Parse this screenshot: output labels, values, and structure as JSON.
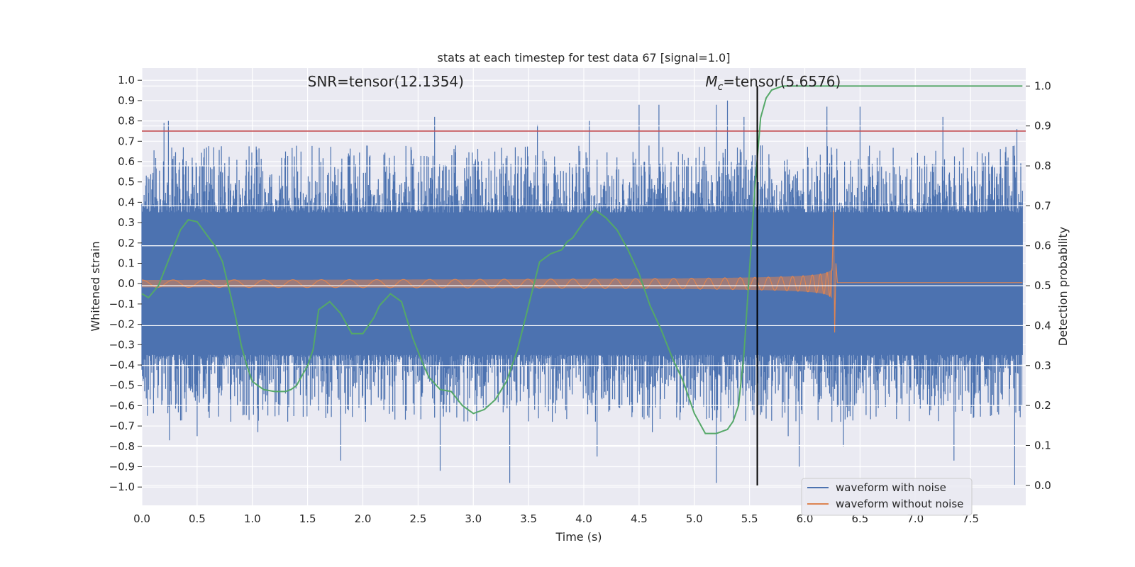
{
  "chart_data": {
    "type": "line",
    "title": "stats at each timestep for test data 67 [signal=1.0]",
    "xlabel": "Time (s)",
    "ylabel": "Whitened strain",
    "ylabel_right": "Detection probability",
    "xlim": [
      0.0,
      8.0
    ],
    "ylim": [
      -1.09,
      1.06
    ],
    "ylim_right": [
      -0.05,
      1.045
    ],
    "x_ticks": [
      "0.0",
      "0.5",
      "1.0",
      "1.5",
      "2.0",
      "2.5",
      "3.0",
      "3.5",
      "4.0",
      "4.5",
      "5.0",
      "5.5",
      "6.0",
      "6.5",
      "7.0",
      "7.5"
    ],
    "y_ticks": [
      "1.0",
      "0.9",
      "0.8",
      "0.7",
      "0.6",
      "0.5",
      "0.4",
      "0.3",
      "0.2",
      "0.1",
      "0.0",
      "−0.1",
      "−0.2",
      "−0.3",
      "−0.4",
      "−0.5",
      "−0.6",
      "−0.7",
      "−0.8",
      "−0.9",
      "−1.0"
    ],
    "y_ticks_right": [
      "1.0",
      "0.9",
      "0.8",
      "0.7",
      "0.6",
      "0.5",
      "0.4",
      "0.3",
      "0.2",
      "0.1",
      "0.0"
    ],
    "grid": true,
    "legend_position": "bottom-right",
    "threshold": {
      "y": 0.75,
      "color": "#c44e52"
    },
    "marker_line": {
      "x": 5.57,
      "color": "#000000"
    },
    "annotations": [
      {
        "text": "SNR=tensor(12.1354)",
        "x": 1.5,
        "y": 0.97
      },
      {
        "text_prefix": "M",
        "text_sub": "c",
        "text_suffix": "=tensor(5.6576)",
        "x": 5.1,
        "y": 0.97
      }
    ],
    "series": [
      {
        "name": "waveform with noise",
        "color": "#4c72b0",
        "kind": "noise",
        "band": 0.35,
        "x_end": 7.97,
        "spikes_up": [
          [
            0.2,
            0.79
          ],
          [
            0.24,
            0.8
          ],
          [
            0.65,
            0.67
          ],
          [
            1.3,
            0.65
          ],
          [
            2.65,
            0.82
          ],
          [
            3.58,
            0.78
          ],
          [
            4.05,
            0.8
          ],
          [
            4.5,
            0.88
          ],
          [
            4.68,
            0.88
          ],
          [
            5.2,
            0.88
          ],
          [
            5.3,
            0.9
          ],
          [
            5.45,
            0.82
          ],
          [
            6.2,
            0.87
          ],
          [
            6.5,
            0.87
          ],
          [
            7.25,
            0.82
          ],
          [
            7.92,
            0.76
          ]
        ],
        "spikes_down": [
          [
            0.05,
            -0.65
          ],
          [
            0.25,
            -0.77
          ],
          [
            0.5,
            -0.75
          ],
          [
            1.05,
            -0.73
          ],
          [
            1.8,
            -0.87
          ],
          [
            2.7,
            -0.92
          ],
          [
            3.33,
            -0.98
          ],
          [
            4.12,
            -0.85
          ],
          [
            4.62,
            -0.73
          ],
          [
            5.2,
            -0.98
          ],
          [
            5.85,
            -0.75
          ],
          [
            5.95,
            -0.9
          ],
          [
            6.35,
            -0.8
          ],
          [
            7.35,
            -0.87
          ],
          [
            7.9,
            -0.99
          ]
        ]
      },
      {
        "name": "waveform without noise",
        "color": "#dd8452",
        "kind": "chirp",
        "x_end": 7.97,
        "merger_t": 6.27,
        "peak": 0.36,
        "trough": -0.24,
        "tail_level": 0.005
      },
      {
        "name": "Detection probability",
        "color": "#55a868",
        "kind": "prob",
        "axis": "right",
        "x": [
          0.0,
          0.06,
          0.15,
          0.25,
          0.35,
          0.42,
          0.5,
          0.58,
          0.66,
          0.73,
          0.8,
          0.85,
          0.9,
          0.95,
          1.0,
          1.1,
          1.2,
          1.3,
          1.35,
          1.4,
          1.5,
          1.55,
          1.6,
          1.65,
          1.7,
          1.8,
          1.9,
          2.0,
          2.1,
          2.15,
          2.25,
          2.35,
          2.45,
          2.55,
          2.6,
          2.7,
          2.8,
          2.9,
          3.0,
          3.1,
          3.2,
          3.3,
          3.4,
          3.5,
          3.6,
          3.7,
          3.8,
          3.85,
          3.9,
          4.0,
          4.1,
          4.2,
          4.3,
          4.4,
          4.5,
          4.6,
          4.7,
          4.8,
          4.9,
          5.0,
          5.1,
          5.15,
          5.2,
          5.3,
          5.35,
          5.4,
          5.45,
          5.5,
          5.55,
          5.6,
          5.65,
          5.7,
          5.8,
          5.9,
          6.0,
          6.2,
          7.97
        ],
        "values": [
          0.48,
          0.47,
          0.5,
          0.57,
          0.64,
          0.665,
          0.66,
          0.63,
          0.6,
          0.56,
          0.48,
          0.42,
          0.35,
          0.3,
          0.26,
          0.24,
          0.235,
          0.235,
          0.24,
          0.25,
          0.3,
          0.34,
          0.44,
          0.45,
          0.46,
          0.43,
          0.38,
          0.38,
          0.42,
          0.45,
          0.48,
          0.46,
          0.37,
          0.3,
          0.27,
          0.24,
          0.235,
          0.2,
          0.18,
          0.19,
          0.215,
          0.26,
          0.34,
          0.45,
          0.56,
          0.58,
          0.59,
          0.61,
          0.62,
          0.66,
          0.69,
          0.67,
          0.64,
          0.59,
          0.53,
          0.45,
          0.39,
          0.32,
          0.26,
          0.18,
          0.13,
          0.13,
          0.13,
          0.14,
          0.16,
          0.2,
          0.33,
          0.54,
          0.75,
          0.92,
          0.97,
          0.99,
          1.0,
          1.0,
          1.0,
          1.0,
          1.0
        ]
      }
    ]
  }
}
